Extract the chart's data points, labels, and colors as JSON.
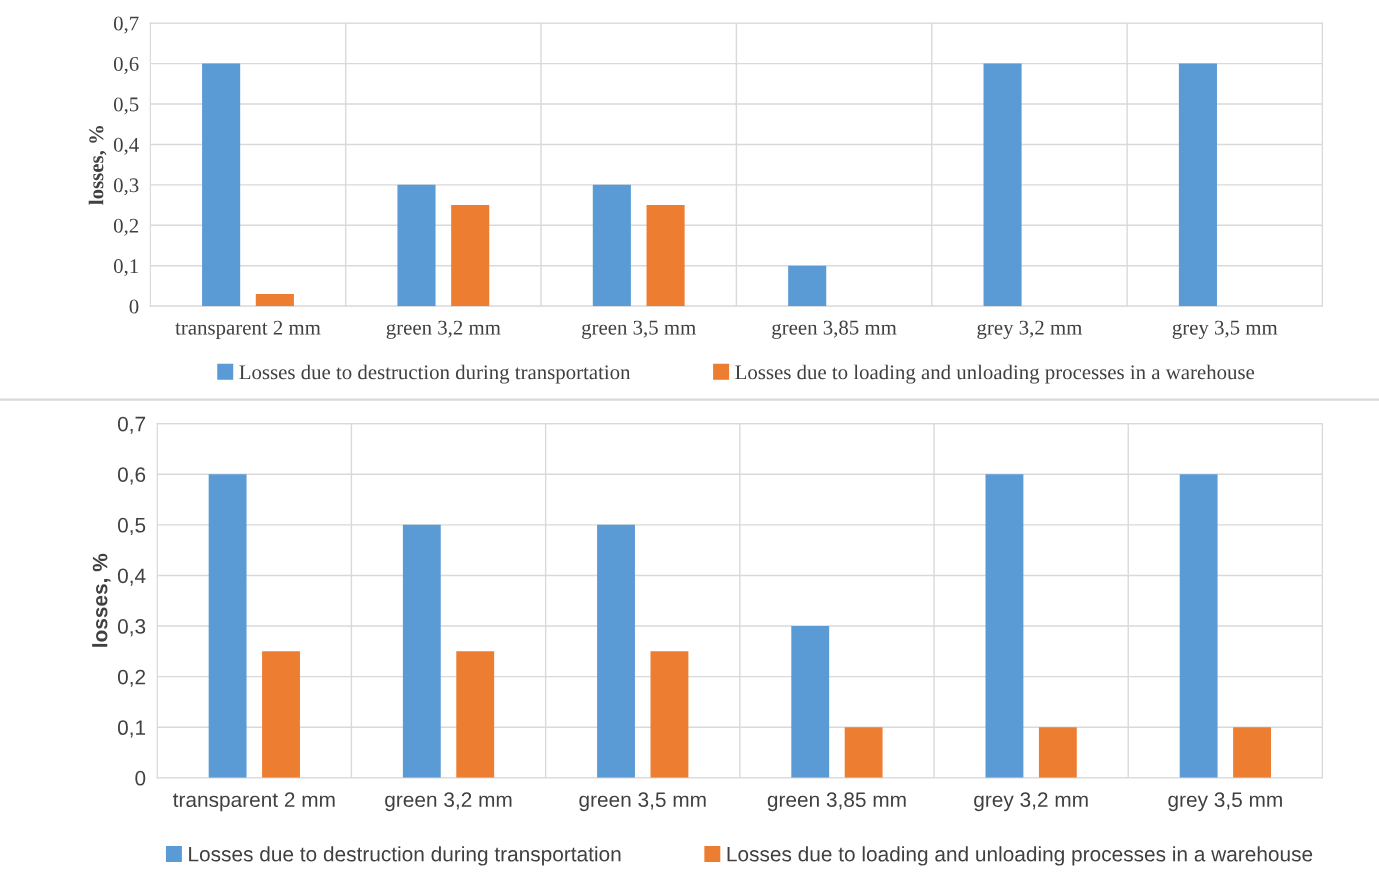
{
  "chart_data": [
    {
      "type": "bar",
      "ylabel": "losses, %",
      "categories": [
        "transparent 2 mm",
        "green 3,2 mm",
        "green 3,5 mm",
        "green 3,85 mm",
        "grey 3,2 mm",
        "grey 3,5 mm"
      ],
      "series": [
        {
          "name": "Losses due to destruction during transportation",
          "color": "#5b9bd5",
          "values": [
            0.6,
            0.3,
            0.3,
            0.1,
            0.6,
            0.6
          ]
        },
        {
          "name": "Losses due to loading and unloading processes in a warehouse",
          "color": "#ed7d31",
          "values": [
            0.03,
            0.25,
            0.25,
            0,
            0,
            0
          ]
        }
      ],
      "ylim": [
        0,
        0.7
      ],
      "yticks": [
        0,
        {
          "value": 0.1,
          "label": "0,1"
        },
        {
          "value": 0.2,
          "label": "0,2"
        },
        {
          "value": 0.3,
          "label": "0,3"
        },
        {
          "value": 0.4,
          "label": "0,4"
        },
        {
          "value": 0.5,
          "label": "0,5"
        },
        {
          "value": 0.6,
          "label": "0,6"
        },
        {
          "value": 0.7,
          "label": "0,7"
        }
      ],
      "grid": true,
      "legend": "bottom"
    },
    {
      "type": "bar",
      "ylabel": "losses, %",
      "categories": [
        "transparent 2 mm",
        "green 3,2 mm",
        "green 3,5 mm",
        "green 3,85 mm",
        "grey 3,2 mm",
        "grey 3,5 mm"
      ],
      "series": [
        {
          "name": "Losses due to destruction during transportation",
          "color": "#5b9bd5",
          "values": [
            0.6,
            0.5,
            0.5,
            0.3,
            0.6,
            0.6
          ]
        },
        {
          "name": "Losses due to loading and unloading processes in a warehouse",
          "color": "#ed7d31",
          "values": [
            0.25,
            0.25,
            0.25,
            0.1,
            0.1,
            0.1
          ]
        }
      ],
      "ylim": [
        0,
        0.7
      ],
      "yticks": [
        0,
        {
          "value": 0.1,
          "label": "0,1"
        },
        {
          "value": 0.2,
          "label": "0,2"
        },
        {
          "value": 0.3,
          "label": "0,3"
        },
        {
          "value": 0.4,
          "label": "0,4"
        },
        {
          "value": 0.5,
          "label": "0,5"
        },
        {
          "value": 0.6,
          "label": "0,6"
        },
        {
          "value": 0.7,
          "label": "0,7"
        }
      ],
      "grid": true,
      "legend": "bottom"
    }
  ]
}
